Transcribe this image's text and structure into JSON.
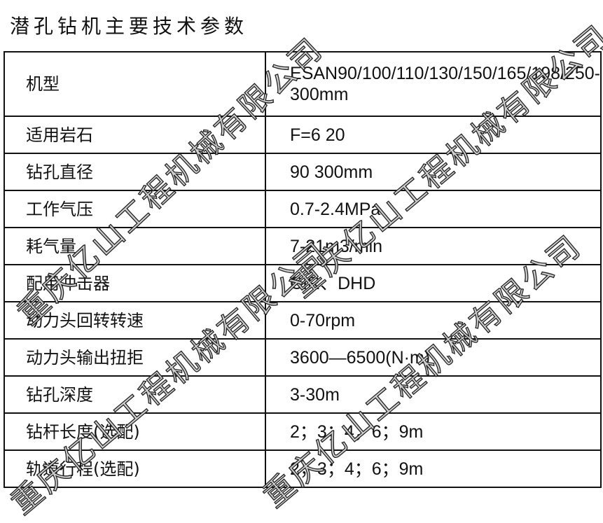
{
  "title": "潜孔钻机主要技术参数",
  "rows": [
    {
      "label": "机型",
      "value": "ESAN90/100/110/130/150/165/198/250-300mm"
    },
    {
      "label": "适用岩石",
      "value": "F=6   20"
    },
    {
      "label": "钻孔直径",
      "value": "90   300mm"
    },
    {
      "label": "工作气压",
      "value": "0.7-2.4MPa"
    },
    {
      "label": "耗气量",
      "value": "7-21m3/min"
    },
    {
      "label": "配用冲击器",
      "value": "CIR、DHD"
    },
    {
      "label": "动力头回转转速",
      "value": "0-70rpm"
    },
    {
      "label": "动力头输出扭拒",
      "value": "3600—6500(N·m)"
    },
    {
      "label": "钻孔深度",
      "value": "3-30m"
    },
    {
      "label": "钻杆长度(选配)",
      "value": "2；3；4；6；9m"
    },
    {
      "label": "轨道行程(选配)",
      "value": "2；3；4；6；9m"
    }
  ],
  "watermark": "重庆亿山工程机械有限公司"
}
